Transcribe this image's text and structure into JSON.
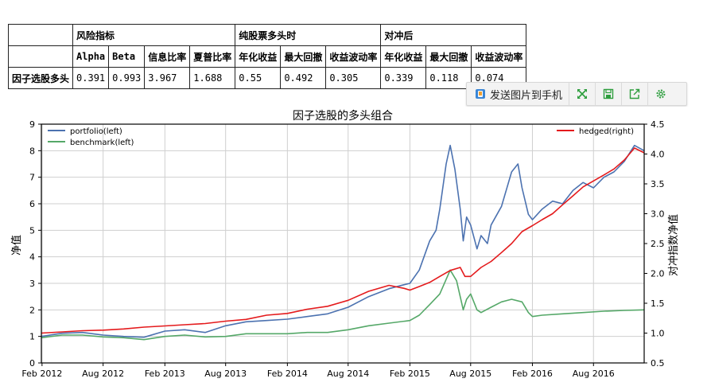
{
  "table": {
    "group_headers": [
      "风险指标",
      "纯股票多头时",
      "对冲后"
    ],
    "col_headers": [
      "Alpha",
      "Beta",
      "信息比率",
      "夏普比率",
      "年化收益",
      "最大回撤",
      "收益波动率",
      "年化收益",
      "最大回撤",
      "收益波动率"
    ],
    "row_label": "因子选股多头",
    "row_values": [
      "0.391",
      "0.993",
      "3.967",
      "1.688",
      "0.55",
      "0.492",
      "0.305",
      "0.339",
      "0.118",
      "0.074"
    ]
  },
  "toolbar": {
    "send_label": "发送图片到手机",
    "icons": [
      "phone-send-icon",
      "fullscreen-icon",
      "save-icon",
      "share-icon",
      "settings-icon"
    ],
    "accent": "#2e9e3e"
  },
  "chart_data": {
    "type": "line",
    "title": "因子选股的多头组合",
    "ylabel": "净值",
    "y2label": "对冲指数净值",
    "ylim": [
      0,
      9
    ],
    "y2lim": [
      0.5,
      4.5
    ],
    "yticks": [
      "0",
      "1",
      "2",
      "3",
      "4",
      "5",
      "6",
      "7",
      "8",
      "9"
    ],
    "y2ticks": [
      "0.5",
      "1.0",
      "1.5",
      "2.0",
      "2.5",
      "3.0",
      "3.5",
      "4.0",
      "4.5"
    ],
    "xlim": [
      "2012-01-30",
      "2016-12-30"
    ],
    "xticks": [
      {
        "date": "2012-02-01",
        "label": "Feb 2012"
      },
      {
        "date": "2012-08-01",
        "label": "Aug 2012"
      },
      {
        "date": "2013-02-01",
        "label": "Feb 2013"
      },
      {
        "date": "2013-08-01",
        "label": "Aug 2013"
      },
      {
        "date": "2014-02-01",
        "label": "Feb 2014"
      },
      {
        "date": "2014-08-01",
        "label": "Aug 2014"
      },
      {
        "date": "2015-02-01",
        "label": "Feb 2015"
      },
      {
        "date": "2015-08-01",
        "label": "Aug 2015"
      },
      {
        "date": "2016-02-01",
        "label": "Feb 2016"
      },
      {
        "date": "2016-08-01",
        "label": "Aug 2016"
      }
    ],
    "grid": true,
    "legend_left": "top-left",
    "legend_right": "top-right",
    "series": [
      {
        "name": "portfolio(left)",
        "axis": "left",
        "color": "#4c72b0",
        "points": [
          [
            "2012-01-30",
            1.0
          ],
          [
            "2012-04-01",
            1.12
          ],
          [
            "2012-06-01",
            1.15
          ],
          [
            "2012-08-01",
            1.05
          ],
          [
            "2012-10-01",
            1.0
          ],
          [
            "2012-12-01",
            0.97
          ],
          [
            "2013-02-01",
            1.2
          ],
          [
            "2013-04-01",
            1.25
          ],
          [
            "2013-06-01",
            1.15
          ],
          [
            "2013-08-01",
            1.4
          ],
          [
            "2013-10-01",
            1.55
          ],
          [
            "2013-12-01",
            1.6
          ],
          [
            "2014-02-01",
            1.65
          ],
          [
            "2014-04-01",
            1.75
          ],
          [
            "2014-06-01",
            1.85
          ],
          [
            "2014-08-01",
            2.1
          ],
          [
            "2014-10-01",
            2.5
          ],
          [
            "2014-12-01",
            2.8
          ],
          [
            "2015-01-15",
            2.95
          ],
          [
            "2015-02-01",
            3.0
          ],
          [
            "2015-03-01",
            3.5
          ],
          [
            "2015-04-01",
            4.6
          ],
          [
            "2015-04-20",
            5.0
          ],
          [
            "2015-05-01",
            5.8
          ],
          [
            "2015-05-20",
            7.5
          ],
          [
            "2015-06-01",
            8.2
          ],
          [
            "2015-06-15",
            7.3
          ],
          [
            "2015-07-01",
            5.8
          ],
          [
            "2015-07-10",
            4.6
          ],
          [
            "2015-07-20",
            5.5
          ],
          [
            "2015-08-01",
            5.2
          ],
          [
            "2015-08-20",
            4.3
          ],
          [
            "2015-09-01",
            4.8
          ],
          [
            "2015-09-20",
            4.5
          ],
          [
            "2015-10-01",
            5.2
          ],
          [
            "2015-11-01",
            5.9
          ],
          [
            "2015-12-01",
            7.2
          ],
          [
            "2015-12-20",
            7.5
          ],
          [
            "2016-01-01",
            6.6
          ],
          [
            "2016-01-20",
            5.6
          ],
          [
            "2016-02-01",
            5.4
          ],
          [
            "2016-03-01",
            5.8
          ],
          [
            "2016-04-01",
            6.1
          ],
          [
            "2016-05-01",
            6.0
          ],
          [
            "2016-06-01",
            6.5
          ],
          [
            "2016-07-01",
            6.8
          ],
          [
            "2016-08-01",
            6.6
          ],
          [
            "2016-09-01",
            7.0
          ],
          [
            "2016-10-01",
            7.2
          ],
          [
            "2016-11-01",
            7.6
          ],
          [
            "2016-12-01",
            8.2
          ],
          [
            "2016-12-30",
            8.0
          ]
        ]
      },
      {
        "name": "benchmark(left)",
        "axis": "left",
        "color": "#55a868",
        "points": [
          [
            "2012-01-30",
            0.95
          ],
          [
            "2012-04-01",
            1.05
          ],
          [
            "2012-06-01",
            1.05
          ],
          [
            "2012-08-01",
            0.98
          ],
          [
            "2012-10-01",
            0.95
          ],
          [
            "2012-12-01",
            0.88
          ],
          [
            "2013-02-01",
            1.0
          ],
          [
            "2013-04-01",
            1.05
          ],
          [
            "2013-06-01",
            0.98
          ],
          [
            "2013-08-01",
            1.0
          ],
          [
            "2013-10-01",
            1.1
          ],
          [
            "2013-12-01",
            1.1
          ],
          [
            "2014-02-01",
            1.1
          ],
          [
            "2014-04-01",
            1.15
          ],
          [
            "2014-06-01",
            1.15
          ],
          [
            "2014-08-01",
            1.25
          ],
          [
            "2014-10-01",
            1.4
          ],
          [
            "2014-12-01",
            1.5
          ],
          [
            "2015-02-01",
            1.6
          ],
          [
            "2015-03-01",
            1.8
          ],
          [
            "2015-04-01",
            2.2
          ],
          [
            "2015-05-01",
            2.6
          ],
          [
            "2015-06-01",
            3.5
          ],
          [
            "2015-06-20",
            3.1
          ],
          [
            "2015-07-01",
            2.5
          ],
          [
            "2015-07-10",
            2.0
          ],
          [
            "2015-07-20",
            2.4
          ],
          [
            "2015-08-01",
            2.6
          ],
          [
            "2015-08-20",
            2.0
          ],
          [
            "2015-09-01",
            1.9
          ],
          [
            "2015-10-01",
            2.1
          ],
          [
            "2015-11-01",
            2.3
          ],
          [
            "2015-12-01",
            2.4
          ],
          [
            "2016-01-01",
            2.3
          ],
          [
            "2016-01-20",
            1.9
          ],
          [
            "2016-02-01",
            1.75
          ],
          [
            "2016-03-01",
            1.8
          ],
          [
            "2016-05-01",
            1.85
          ],
          [
            "2016-07-01",
            1.9
          ],
          [
            "2016-09-01",
            1.95
          ],
          [
            "2016-11-01",
            1.98
          ],
          [
            "2016-12-30",
            2.0
          ]
        ]
      },
      {
        "name": "hedged(right)",
        "axis": "right",
        "color": "#e41a1c",
        "points": [
          [
            "2012-01-30",
            1.0
          ],
          [
            "2012-04-01",
            1.02
          ],
          [
            "2012-06-01",
            1.04
          ],
          [
            "2012-08-01",
            1.05
          ],
          [
            "2012-10-01",
            1.07
          ],
          [
            "2012-12-01",
            1.1
          ],
          [
            "2013-02-01",
            1.12
          ],
          [
            "2013-04-01",
            1.14
          ],
          [
            "2013-06-01",
            1.16
          ],
          [
            "2013-08-01",
            1.2
          ],
          [
            "2013-10-01",
            1.23
          ],
          [
            "2013-12-01",
            1.3
          ],
          [
            "2014-02-01",
            1.33
          ],
          [
            "2014-04-01",
            1.4
          ],
          [
            "2014-06-01",
            1.45
          ],
          [
            "2014-08-01",
            1.55
          ],
          [
            "2014-10-01",
            1.7
          ],
          [
            "2014-12-01",
            1.8
          ],
          [
            "2015-01-15",
            1.75
          ],
          [
            "2015-02-01",
            1.72
          ],
          [
            "2015-03-01",
            1.78
          ],
          [
            "2015-04-01",
            1.85
          ],
          [
            "2015-05-01",
            1.95
          ],
          [
            "2015-06-01",
            2.05
          ],
          [
            "2015-07-01",
            2.1
          ],
          [
            "2015-07-15",
            1.95
          ],
          [
            "2015-08-01",
            1.95
          ],
          [
            "2015-09-01",
            2.1
          ],
          [
            "2015-10-01",
            2.2
          ],
          [
            "2015-11-01",
            2.35
          ],
          [
            "2015-12-01",
            2.5
          ],
          [
            "2016-01-01",
            2.7
          ],
          [
            "2016-02-01",
            2.8
          ],
          [
            "2016-03-01",
            2.9
          ],
          [
            "2016-04-01",
            3.0
          ],
          [
            "2016-05-01",
            3.15
          ],
          [
            "2016-06-01",
            3.3
          ],
          [
            "2016-07-01",
            3.45
          ],
          [
            "2016-08-01",
            3.55
          ],
          [
            "2016-09-01",
            3.65
          ],
          [
            "2016-10-01",
            3.75
          ],
          [
            "2016-11-01",
            3.9
          ],
          [
            "2016-12-01",
            4.1
          ],
          [
            "2016-12-30",
            4.02
          ]
        ]
      }
    ]
  }
}
